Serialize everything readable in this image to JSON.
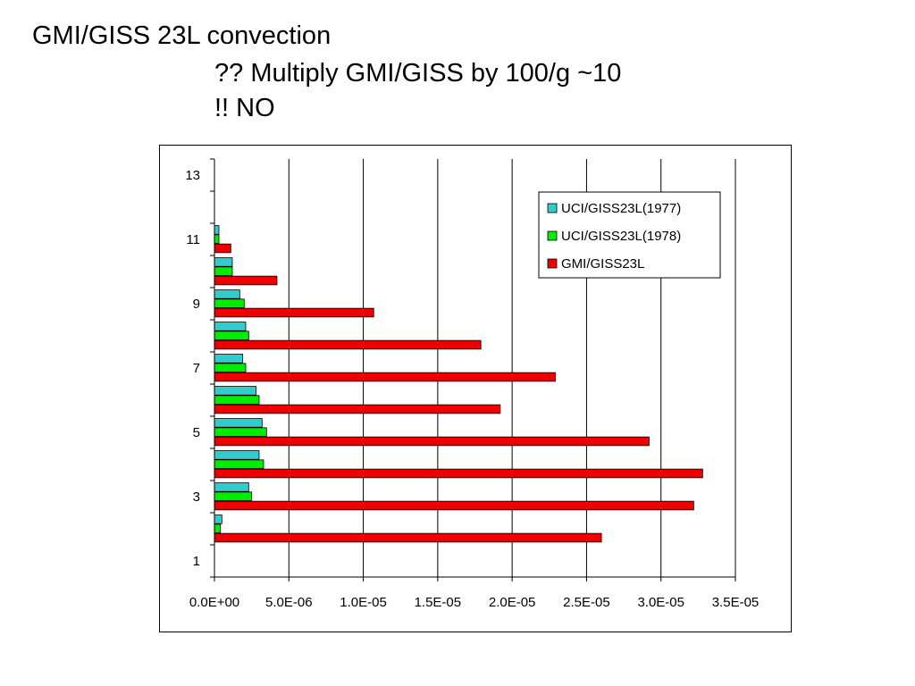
{
  "slide": {
    "title": "GMI/GISS 23L convection",
    "line1": "?? Multiply GMI/GISS by 100/g ~10",
    "line2": "!! NO"
  },
  "chart_data": {
    "type": "bar",
    "orientation": "horizontal",
    "categories": [
      1,
      2,
      3,
      4,
      5,
      6,
      7,
      8,
      9,
      10,
      11,
      12,
      13
    ],
    "y_tick_labels": [
      "1",
      "3",
      "5",
      "7",
      "9",
      "11",
      "13"
    ],
    "x_tick_labels": [
      "0.0E+00",
      "5.0E-06",
      "1.0E-05",
      "1.5E-05",
      "2.0E-05",
      "2.5E-05",
      "3.0E-05",
      "3.5E-05"
    ],
    "xlim": [
      0,
      3.5e-05
    ],
    "grid": "vertical",
    "legend_position": "top-right",
    "series": [
      {
        "name": "UCI/GISS23L(1977)",
        "color": "#33cccc",
        "values": [
          0,
          5e-07,
          2.3e-06,
          3e-06,
          3.2e-06,
          2.8e-06,
          1.9e-06,
          2.1e-06,
          1.7e-06,
          1.2e-06,
          3e-07,
          0,
          0
        ]
      },
      {
        "name": "UCI/GISS23L(1978)",
        "color": "#00ee00",
        "values": [
          0,
          4e-07,
          2.5e-06,
          3.3e-06,
          3.5e-06,
          3e-06,
          2.1e-06,
          2.3e-06,
          2e-06,
          1.2e-06,
          3e-07,
          0,
          0
        ]
      },
      {
        "name": "GMI/GISS23L",
        "color": "#ee0000",
        "values": [
          0,
          2.6e-05,
          3.22e-05,
          3.28e-05,
          2.92e-05,
          1.92e-05,
          2.29e-05,
          1.79e-05,
          1.07e-05,
          4.2e-06,
          1.1e-06,
          0,
          0
        ]
      }
    ]
  }
}
